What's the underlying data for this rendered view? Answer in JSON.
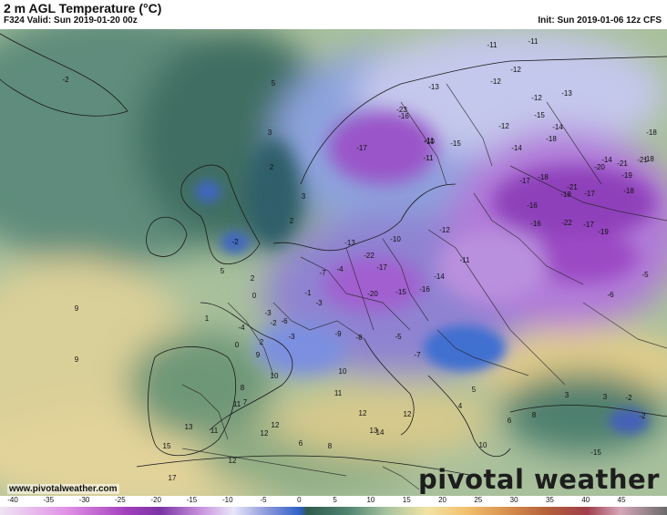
{
  "header": {
    "title": "2 m AGL Temperature (°C)",
    "valid": "F324 Valid: Sun 2019-01-20 00z",
    "init": "Init: Sun 2019-01-06 12z CFS"
  },
  "footer": {
    "website": "www.pivotalweather.com",
    "brand": "pivotal weather"
  },
  "colorbar": {
    "ticks": [
      "-40",
      "-35",
      "-30",
      "-25",
      "-20",
      "-15",
      "-10",
      "-5",
      "0",
      "5",
      "10",
      "15",
      "20",
      "25",
      "30",
      "35",
      "40",
      "45"
    ],
    "colors": {
      "-40": "#e5d9ee",
      "-30": "#d27fe0",
      "-20": "#9c3fb2",
      "-15": "#c68ad8",
      "-10": "#eae7f7",
      "-5": "#8e96d8",
      "0": "#3d68c8",
      "5": "#3f6a55",
      "10": "#5f8f79",
      "15": "#b7c9a5",
      "20": "#e8d9a0",
      "25": "#f3c47a",
      "30": "#d99a55",
      "35": "#b36a3a",
      "40": "#8d4a3a",
      "45": "#6e6e6e"
    }
  },
  "map_labels": [
    {
      "t": "-2"
    },
    {
      "t": "5"
    },
    {
      "t": "3"
    },
    {
      "t": "2"
    },
    {
      "t": "3"
    },
    {
      "t": "2"
    },
    {
      "t": "-2"
    },
    {
      "t": "0"
    },
    {
      "t": "1"
    },
    {
      "t": "9"
    },
    {
      "t": "-11"
    },
    {
      "t": "-11"
    },
    {
      "t": "-12"
    },
    {
      "t": "-12"
    },
    {
      "t": "-13"
    },
    {
      "t": "-13"
    },
    {
      "t": "-12"
    },
    {
      "t": "-12"
    },
    {
      "t": "-16"
    },
    {
      "t": "-15"
    },
    {
      "t": "-14"
    },
    {
      "t": "-15"
    },
    {
      "t": "-14"
    },
    {
      "t": "-18"
    },
    {
      "t": "-23"
    },
    {
      "t": "-11"
    },
    {
      "t": "-17"
    },
    {
      "t": "-10"
    },
    {
      "t": "-11"
    },
    {
      "t": "-21"
    },
    {
      "t": "-20"
    },
    {
      "t": "-19"
    },
    {
      "t": "-21"
    },
    {
      "t": "-18"
    },
    {
      "t": "-18"
    },
    {
      "t": "-17"
    },
    {
      "t": "-18"
    },
    {
      "t": "-16"
    },
    {
      "t": "-22"
    },
    {
      "t": "-19"
    },
    {
      "t": "-17"
    },
    {
      "t": "-18"
    },
    {
      "t": "-17"
    },
    {
      "t": "-16"
    },
    {
      "t": "-22"
    },
    {
      "t": "-17"
    },
    {
      "t": "-13"
    },
    {
      "t": "-20"
    },
    {
      "t": "-15"
    },
    {
      "t": "-16"
    },
    {
      "t": "-14"
    },
    {
      "t": "-11"
    },
    {
      "t": "-12"
    },
    {
      "t": "-10"
    },
    {
      "t": "-7"
    },
    {
      "t": "-4"
    },
    {
      "t": "-1"
    },
    {
      "t": "-3"
    },
    {
      "t": "-6"
    },
    {
      "t": "-8"
    },
    {
      "t": "-9"
    },
    {
      "t": "-5"
    },
    {
      "t": "-7"
    },
    {
      "t": "-2"
    },
    {
      "t": "-3"
    },
    {
      "t": "10"
    },
    {
      "t": "10"
    },
    {
      "t": "7"
    },
    {
      "t": "11"
    },
    {
      "t": "12"
    },
    {
      "t": "13"
    },
    {
      "t": "11"
    },
    {
      "t": "13"
    },
    {
      "t": "15"
    },
    {
      "t": "12"
    },
    {
      "t": "17"
    },
    {
      "t": "9"
    },
    {
      "t": "12"
    },
    {
      "t": "12"
    },
    {
      "t": "14"
    },
    {
      "t": "6"
    },
    {
      "t": "8"
    },
    {
      "t": "4"
    },
    {
      "t": "5"
    },
    {
      "t": "10"
    },
    {
      "t": "6"
    },
    {
      "t": "8"
    },
    {
      "t": "3"
    },
    {
      "t": "3"
    },
    {
      "t": "-2"
    },
    {
      "t": "-2"
    },
    {
      "t": "-15"
    },
    {
      "t": "-18"
    },
    {
      "t": "-21"
    },
    {
      "t": "-14"
    },
    {
      "t": "-6"
    },
    {
      "t": "-5"
    },
    {
      "t": "5"
    },
    {
      "t": "2"
    },
    {
      "t": "-3"
    },
    {
      "t": "-4"
    },
    {
      "t": "0"
    },
    {
      "t": "2"
    },
    {
      "t": "9"
    },
    {
      "t": "8"
    },
    {
      "t": "11"
    },
    {
      "t": "12"
    }
  ]
}
